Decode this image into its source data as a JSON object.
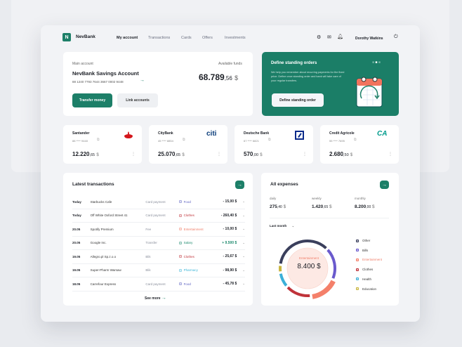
{
  "brand": {
    "name": "NevBank",
    "logo_letter": "N"
  },
  "nav": [
    "My account",
    "Transactions",
    "Cards",
    "Offers",
    "Investments"
  ],
  "user": "Dorothy Watkins",
  "main_account": {
    "label": "Main account",
    "funds_label": "Available funds",
    "name": "NevBank Savings Account",
    "number": "88 1240 7793 7644 3667 0002 9448",
    "amount_int": "68.789",
    "amount_dec": ",56",
    "currency": "$",
    "transfer": "Transfer money",
    "link": "Link accounts"
  },
  "promo": {
    "title": "Define standing orders",
    "text": "We help you remember about recurring payments for the fixed price. Define once standing order and bank will take care of your regular transfers.",
    "button": "Define standing order"
  },
  "banks": [
    {
      "name": "Santander",
      "number": "88 **** 9448",
      "int": "12.220",
      "dec": ",65",
      "cur": "$"
    },
    {
      "name": "CityBank",
      "number": "45 **** 8854",
      "int": "25.070",
      "dec": ",65",
      "cur": "$",
      "logo": "citi"
    },
    {
      "name": "Deutsche Bank",
      "number": "67 **** 6821",
      "int": "570",
      "dec": ",00",
      "cur": "$"
    },
    {
      "name": "Credit Agricole",
      "number": "55 **** 7695",
      "int": "2.680",
      "dec": ",50",
      "cur": "$",
      "logo": "CA"
    }
  ],
  "transactions": {
    "title": "Latest transactions",
    "see_more": "See more",
    "rows": [
      {
        "date": "Today",
        "name": "Starbucks Cafe",
        "type": "Card payment",
        "cat": "Food",
        "amount": "- 15,00 $"
      },
      {
        "date": "Today",
        "name": "Off White Oxford Street 41",
        "type": "Card payment",
        "cat": "Clothes",
        "amount": "- 260,40 $"
      },
      {
        "date": "20.05",
        "name": "Spotify Premium",
        "type": "Fee",
        "cat": "Entertainment",
        "amount": "- 10,00 $"
      },
      {
        "date": "20.05",
        "name": "Google Inc.",
        "type": "Transfer",
        "cat": "Salary",
        "amount": "+ 9.500 $"
      },
      {
        "date": "19.05",
        "name": "Allegro.pl Sp.z.o.o",
        "type": "Blik",
        "cat": "Clothes",
        "amount": "- 25,67 $"
      },
      {
        "date": "19.05",
        "name": "Super-Pharm Warsaw",
        "type": "Blik",
        "cat": "Pharmacy",
        "amount": "- 98,90 $"
      },
      {
        "date": "18.05",
        "name": "Carrefour Express",
        "type": "Card payment",
        "cat": "Food",
        "amount": "- 45,78 $"
      }
    ]
  },
  "categories": {
    "Food": "#5a5fc0",
    "Clothes": "#c0333a",
    "Entertainment": "#f07e6a",
    "Salary": "#1d8a6d",
    "Pharmacy": "#3bb6d8"
  },
  "expenses": {
    "title": "All expenses",
    "period": "Last month",
    "stats": [
      {
        "label": "daily",
        "int": "275",
        "dec": ",40",
        "cur": "$"
      },
      {
        "label": "weekly",
        "int": "1.420",
        "dec": ",65",
        "cur": "$"
      },
      {
        "label": "monthly",
        "int": "8.200",
        "dec": ",00",
        "cur": "$"
      }
    ],
    "center_label": "Entertainment",
    "center_value": "8.400 $"
  },
  "chart_data": {
    "type": "pie",
    "style": "donut",
    "categories": [
      "Other",
      "Bills",
      "Entertainment",
      "Clothes",
      "Health",
      "Education"
    ],
    "colors": [
      "#3a3f5c",
      "#6a5acd",
      "#f4806a",
      "#c0333a",
      "#3bb0d8",
      "#c9b640"
    ],
    "shares_pct": [
      39,
      21,
      18,
      17,
      10,
      5
    ],
    "highlighted": "Entertainment"
  },
  "accent": "#1d7f68"
}
